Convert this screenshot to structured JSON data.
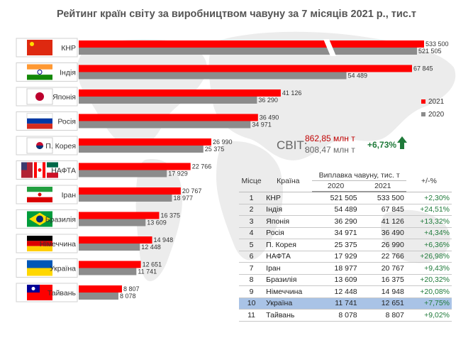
{
  "chart_data": {
    "type": "bar",
    "title": "Рейтинг країн світу за виробництвом чавуну за 7 місяців 2021 р., тис.т",
    "categories": [
      "КНР",
      "Індія",
      "Японія",
      "Росія",
      "П. Корея",
      "НАФТА",
      "Іран",
      "Бразилія",
      "Німеччина",
      "Україна",
      "Тайвань"
    ],
    "series": [
      {
        "name": "2021",
        "values": [
          533500,
          67845,
          41126,
          36490,
          26990,
          22766,
          20767,
          16375,
          14948,
          12651,
          8807
        ],
        "labels": [
          "533 500",
          "67 845",
          "41 126",
          "36 490",
          "26 990",
          "22 766",
          "20 767",
          "16 375",
          "14 948",
          "12 651",
          "8 807"
        ]
      },
      {
        "name": "2020",
        "values": [
          521505,
          54489,
          36290,
          34971,
          25375,
          17929,
          18977,
          13609,
          12448,
          11741,
          8078
        ],
        "labels": [
          "521 505",
          "54 489",
          "36 290",
          "34 971",
          "25 375",
          "17 929",
          "18 977",
          "13 609",
          "12 448",
          "11 741",
          "8 078"
        ]
      }
    ],
    "legend_position": "right",
    "axis_break": true
  },
  "colors": {
    "y2021": "#ff0000",
    "y2020": "#8c8c8c",
    "growth": "#1f7a3a",
    "world2021": "#c00000",
    "highlight": "#a9c3e6"
  },
  "flags": [
    "china-flag",
    "india-flag",
    "japan-flag",
    "russia-flag",
    "south-korea-flag",
    "nafta-flags",
    "iran-flag",
    "brazil-flag",
    "germany-flag",
    "ukraine-flag",
    "taiwan-flag"
  ],
  "world": {
    "label": "СВІТ:",
    "v2021": "862,85 млн т",
    "v2020": "808,47 млн т",
    "growth": "+6,73%",
    "icon": "up-arrow-icon"
  },
  "table": {
    "headers": {
      "rank": "Місце",
      "country": "Країна",
      "group": "Виплавка чавуну, тис. т",
      "y2020": "2020",
      "y2021": "2021",
      "pct": "+/-%"
    },
    "highlight_row": 10,
    "rows": [
      {
        "rank": "1",
        "country": "КНР",
        "v2020": "521 505",
        "v2021": "533 500",
        "pct": "+2,30%"
      },
      {
        "rank": "2",
        "country": "Індія",
        "v2020": "54 489",
        "v2021": "67 845",
        "pct": "+24,51%"
      },
      {
        "rank": "3",
        "country": "Японія",
        "v2020": "36 290",
        "v2021": "41 126",
        "pct": "+13,32%"
      },
      {
        "rank": "4",
        "country": "Росія",
        "v2020": "34 971",
        "v2021": "36 490",
        "pct": "+4,34%"
      },
      {
        "rank": "5",
        "country": "П. Корея",
        "v2020": "25 375",
        "v2021": "26 990",
        "pct": "+6,36%"
      },
      {
        "rank": "6",
        "country": "НАФТА",
        "v2020": "17 929",
        "v2021": "22 766",
        "pct": "+26,98%"
      },
      {
        "rank": "7",
        "country": "Іран",
        "v2020": "18 977",
        "v2021": "20 767",
        "pct": "+9,43%"
      },
      {
        "rank": "8",
        "country": "Бразилія",
        "v2020": "13 609",
        "v2021": "16 375",
        "pct": "+20,32%"
      },
      {
        "rank": "9",
        "country": "Німеччина",
        "v2020": "12 448",
        "v2021": "14 948",
        "pct": "+20,08%"
      },
      {
        "rank": "10",
        "country": "Україна",
        "v2020": "11 741",
        "v2021": "12 651",
        "pct": "+7,75%"
      },
      {
        "rank": "11",
        "country": "Тайвань",
        "v2020": "8 078",
        "v2021": "8 807",
        "pct": "+9,02%"
      }
    ]
  }
}
